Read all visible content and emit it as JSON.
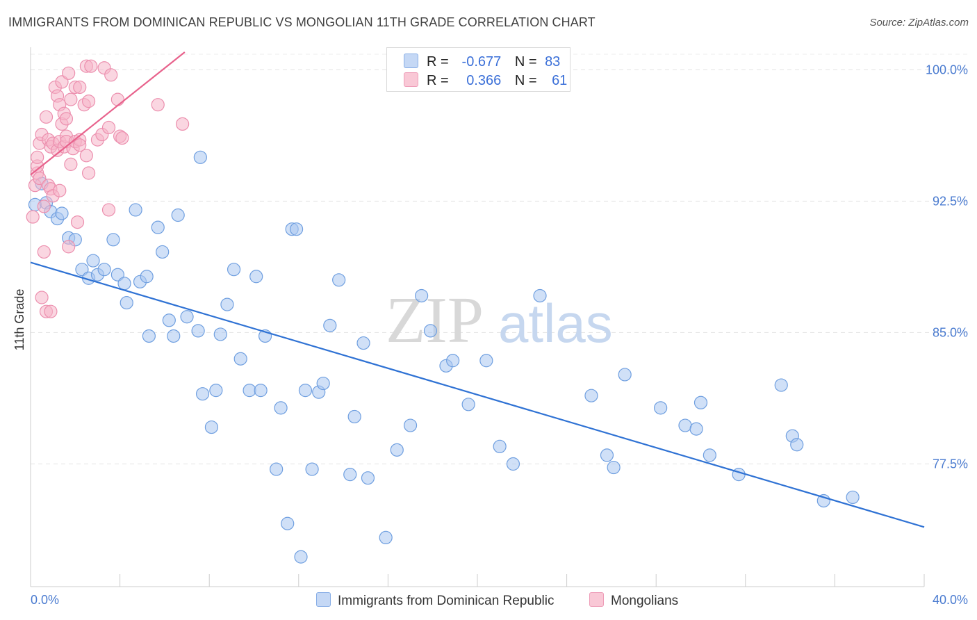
{
  "title": "IMMIGRANTS FROM DOMINICAN REPUBLIC VS MONGOLIAN 11TH GRADE CORRELATION CHART",
  "source": "Source: ZipAtlas.com",
  "watermark": {
    "zip": "ZIP",
    "atlas": "atlas"
  },
  "legend": {
    "rows": [
      {
        "r_label": "R =",
        "r_value": "-0.677",
        "n_label": "N =",
        "n_value": "83",
        "color": "#a9c6f0"
      },
      {
        "r_label": "R =",
        "r_value": "0.366",
        "n_label": "N =",
        "n_value": "61",
        "color": "#f6b5c9"
      }
    ]
  },
  "chart_data": {
    "type": "scatter",
    "xlabel": "",
    "ylabel": "11th Grade",
    "xlim": [
      0,
      40
    ],
    "ylim": [
      70.5,
      101.2
    ],
    "x_tick_labels": [
      "0.0%",
      "40.0%"
    ],
    "y_ticks": [
      77.5,
      85.0,
      92.5,
      100.0
    ],
    "y_tick_labels": [
      "77.5%",
      "85.0%",
      "92.5%",
      "100.0%"
    ],
    "grid": true,
    "legend_position": "top-center",
    "series": [
      {
        "name": "Immigrants from Dominican Republic",
        "color": "#a9c6f0",
        "stroke": "#6f9fe0",
        "trend": {
          "x": [
            0,
            40
          ],
          "y": [
            89.0,
            73.9
          ],
          "color": "#2f72d4"
        },
        "points": [
          [
            0.2,
            92.3
          ],
          [
            0.5,
            93.5
          ],
          [
            0.7,
            92.4
          ],
          [
            0.9,
            91.9
          ],
          [
            1.2,
            91.5
          ],
          [
            1.4,
            91.8
          ],
          [
            1.7,
            90.4
          ],
          [
            2.0,
            90.3
          ],
          [
            2.3,
            88.6
          ],
          [
            2.6,
            88.1
          ],
          [
            2.8,
            89.1
          ],
          [
            3.0,
            88.3
          ],
          [
            3.3,
            88.6
          ],
          [
            3.7,
            90.3
          ],
          [
            3.9,
            88.3
          ],
          [
            4.2,
            87.8
          ],
          [
            4.3,
            86.7
          ],
          [
            4.7,
            92.0
          ],
          [
            4.9,
            87.9
          ],
          [
            5.2,
            88.2
          ],
          [
            5.3,
            84.8
          ],
          [
            5.7,
            91.0
          ],
          [
            5.9,
            89.6
          ],
          [
            6.2,
            85.7
          ],
          [
            6.4,
            84.8
          ],
          [
            6.6,
            91.7
          ],
          [
            7.0,
            85.9
          ],
          [
            7.5,
            85.1
          ],
          [
            7.6,
            95.0
          ],
          [
            7.7,
            81.5
          ],
          [
            8.1,
            79.6
          ],
          [
            8.3,
            81.7
          ],
          [
            8.5,
            84.9
          ],
          [
            8.8,
            86.6
          ],
          [
            9.1,
            88.6
          ],
          [
            9.4,
            83.5
          ],
          [
            9.8,
            81.7
          ],
          [
            10.1,
            88.2
          ],
          [
            10.3,
            81.7
          ],
          [
            10.5,
            84.8
          ],
          [
            11.0,
            77.2
          ],
          [
            11.2,
            80.7
          ],
          [
            11.5,
            74.1
          ],
          [
            11.7,
            90.9
          ],
          [
            11.9,
            90.9
          ],
          [
            12.1,
            72.2
          ],
          [
            12.3,
            81.7
          ],
          [
            12.6,
            77.2
          ],
          [
            12.9,
            81.6
          ],
          [
            13.1,
            82.1
          ],
          [
            13.4,
            85.4
          ],
          [
            13.8,
            88.0
          ],
          [
            14.3,
            76.9
          ],
          [
            14.5,
            80.2
          ],
          [
            14.9,
            84.4
          ],
          [
            15.1,
            76.7
          ],
          [
            15.9,
            73.3
          ],
          [
            16.4,
            78.3
          ],
          [
            17.0,
            79.7
          ],
          [
            17.5,
            87.1
          ],
          [
            17.9,
            85.1
          ],
          [
            18.6,
            83.1
          ],
          [
            18.9,
            83.4
          ],
          [
            19.6,
            80.9
          ],
          [
            20.4,
            83.4
          ],
          [
            21.0,
            78.5
          ],
          [
            21.6,
            77.5
          ],
          [
            22.8,
            87.1
          ],
          [
            25.1,
            81.4
          ],
          [
            25.8,
            78.0
          ],
          [
            26.1,
            77.3
          ],
          [
            26.6,
            82.6
          ],
          [
            28.2,
            80.7
          ],
          [
            29.3,
            79.7
          ],
          [
            29.8,
            79.5
          ],
          [
            30.0,
            81.0
          ],
          [
            30.4,
            78.0
          ],
          [
            31.7,
            76.9
          ],
          [
            33.6,
            82.0
          ],
          [
            34.1,
            79.1
          ],
          [
            34.3,
            78.6
          ],
          [
            35.5,
            75.4
          ],
          [
            36.8,
            75.6
          ]
        ]
      },
      {
        "name": "Mongolians",
        "color": "#f6b5c9",
        "stroke": "#ec8fae",
        "trend": {
          "x": [
            0,
            6.9
          ],
          "y": [
            94.0,
            101.0
          ],
          "color": "#e8628c"
        },
        "points": [
          [
            0.1,
            91.6
          ],
          [
            0.2,
            93.4
          ],
          [
            0.3,
            94.1
          ],
          [
            0.3,
            94.5
          ],
          [
            0.3,
            95.0
          ],
          [
            0.4,
            93.8
          ],
          [
            0.4,
            95.8
          ],
          [
            0.5,
            96.3
          ],
          [
            0.5,
            87.0
          ],
          [
            0.6,
            89.6
          ],
          [
            0.6,
            92.2
          ],
          [
            0.7,
            97.3
          ],
          [
            0.7,
            86.2
          ],
          [
            0.8,
            96.0
          ],
          [
            0.8,
            93.4
          ],
          [
            0.9,
            95.6
          ],
          [
            0.9,
            93.2
          ],
          [
            0.9,
            86.2
          ],
          [
            1.0,
            92.8
          ],
          [
            1.0,
            95.8
          ],
          [
            1.1,
            99.0
          ],
          [
            1.2,
            95.4
          ],
          [
            1.2,
            98.5
          ],
          [
            1.3,
            95.9
          ],
          [
            1.3,
            98.0
          ],
          [
            1.3,
            93.1
          ],
          [
            1.4,
            96.9
          ],
          [
            1.4,
            99.3
          ],
          [
            1.5,
            97.5
          ],
          [
            1.5,
            95.6
          ],
          [
            1.6,
            96.2
          ],
          [
            1.6,
            97.2
          ],
          [
            1.6,
            95.9
          ],
          [
            1.7,
            89.9
          ],
          [
            1.7,
            99.8
          ],
          [
            1.8,
            94.6
          ],
          [
            1.8,
            98.3
          ],
          [
            1.9,
            95.5
          ],
          [
            2.0,
            95.9
          ],
          [
            2.0,
            99.0
          ],
          [
            2.1,
            91.3
          ],
          [
            2.2,
            99.0
          ],
          [
            2.4,
            98.0
          ],
          [
            2.2,
            96.0
          ],
          [
            2.2,
            95.7
          ],
          [
            2.5,
            100.2
          ],
          [
            2.6,
            94.1
          ],
          [
            2.7,
            100.2
          ],
          [
            2.5,
            95.1
          ],
          [
            2.6,
            98.2
          ],
          [
            3.0,
            96.0
          ],
          [
            3.3,
            100.1
          ],
          [
            3.2,
            96.3
          ],
          [
            3.6,
            99.7
          ],
          [
            3.5,
            96.7
          ],
          [
            3.5,
            92.0
          ],
          [
            3.9,
            98.3
          ],
          [
            4.0,
            96.2
          ],
          [
            4.1,
            96.1
          ],
          [
            5.7,
            98.0
          ],
          [
            6.8,
            96.9
          ]
        ]
      }
    ]
  }
}
